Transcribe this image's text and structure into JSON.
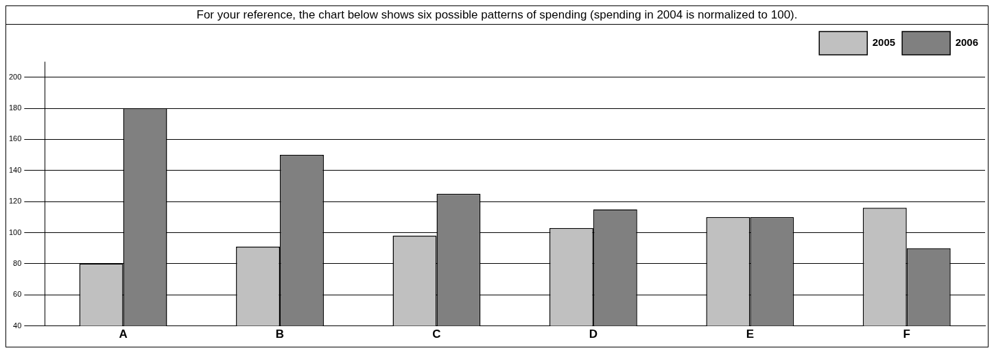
{
  "chart_data": {
    "type": "bar",
    "title": "For your reference, the chart below shows six possible patterns of spending (spending in 2004 is normalized to 100).",
    "categories": [
      "A",
      "B",
      "C",
      "D",
      "E",
      "F"
    ],
    "series": [
      {
        "name": "2005",
        "color": "#c0c0c0",
        "values": [
          80,
          91,
          98,
          103,
          110,
          116
        ]
      },
      {
        "name": "2006",
        "color": "#808080",
        "values": [
          180,
          150,
          125,
          115,
          110,
          90
        ]
      }
    ],
    "ylim": [
      40,
      210
    ],
    "yticks": [
      40,
      60,
      80,
      100,
      120,
      140,
      160,
      180,
      200
    ],
    "grid": "y",
    "legend": "top right"
  }
}
